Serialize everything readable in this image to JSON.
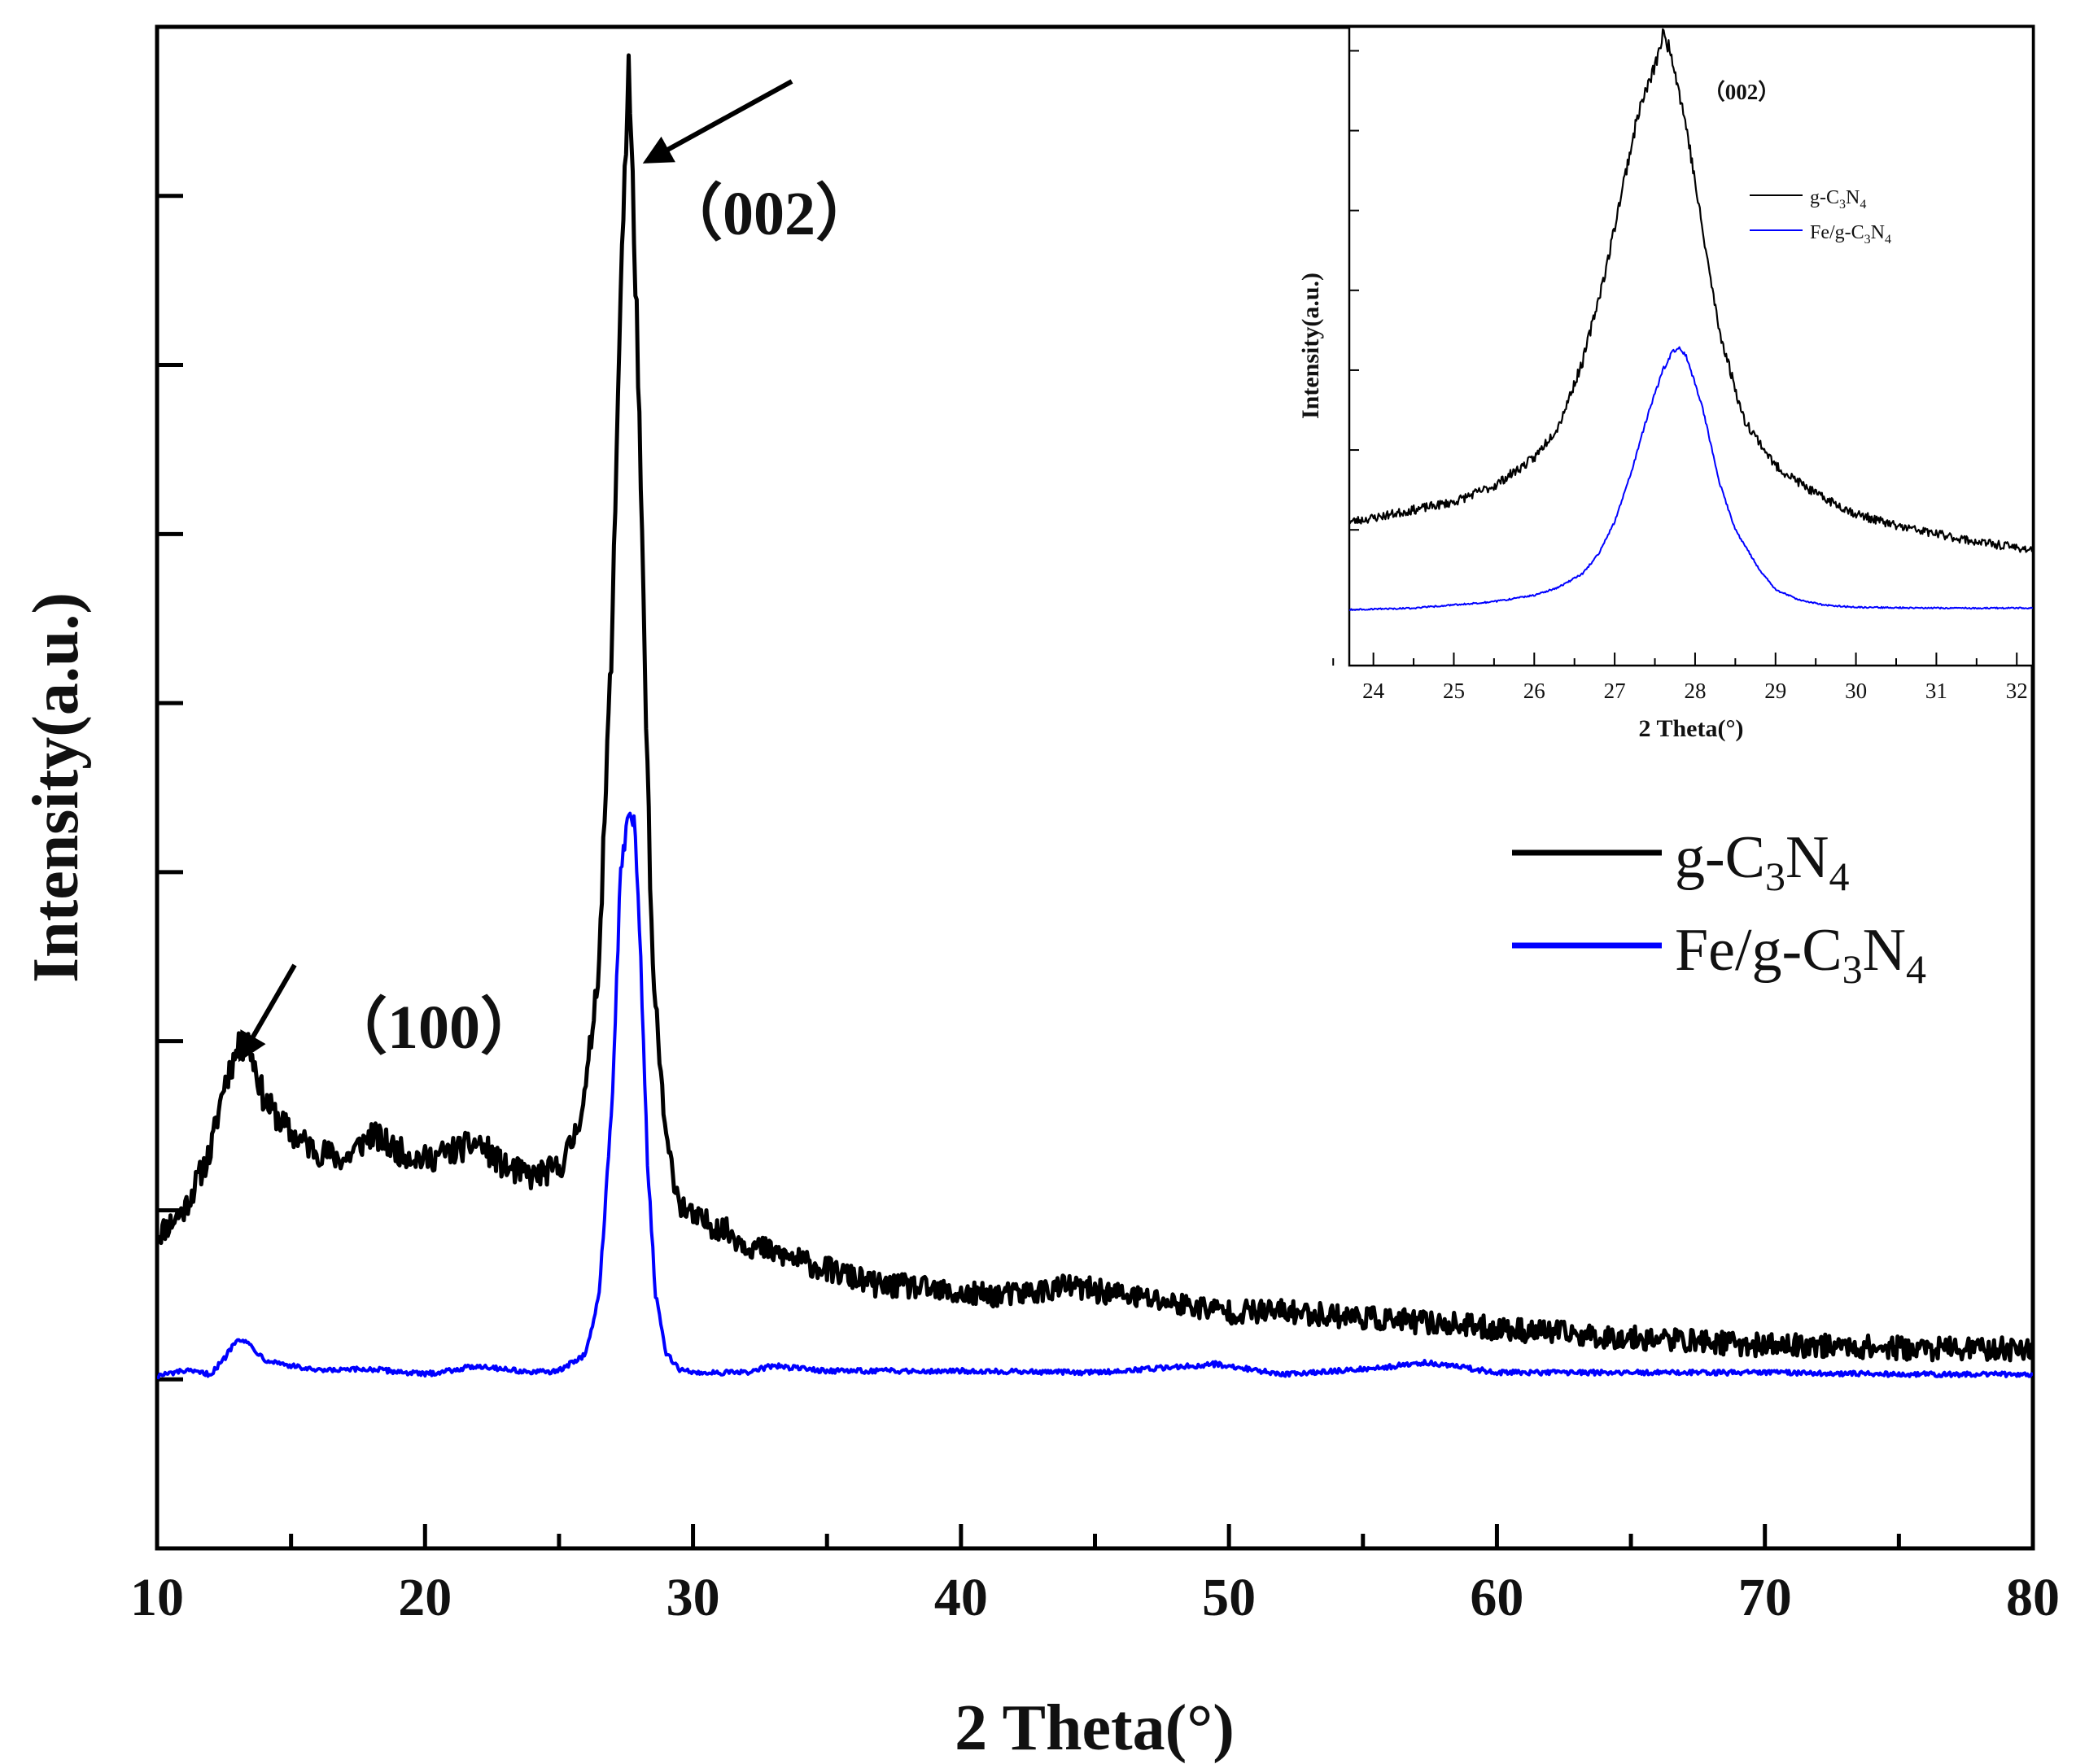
{
  "chart_data": [
    {
      "type": "line",
      "title": "",
      "xlabel": "2 Theta(°)",
      "ylabel": "Intensity(a.u.)",
      "xlim": [
        10,
        80
      ],
      "ylim": [
        -1.0,
        8.0
      ],
      "xticks": [
        "10",
        "20",
        "30",
        "40",
        "50",
        "60",
        "70",
        "80"
      ],
      "grid": false,
      "legend": {
        "position": "center-right",
        "entries": [
          {
            "prefix": "g-C",
            "sub1": "3",
            "mid": "N",
            "sub2": "4",
            "color": "#000000"
          },
          {
            "prefix": "Fe/g-C",
            "sub1": "3",
            "mid": "N",
            "sub2": "4",
            "color": "#0000ff"
          }
        ]
      },
      "annotations": [
        {
          "text": "（100）",
          "x": 16.5,
          "y": 2.3
        },
        {
          "text": "（002）",
          "x": 31.5,
          "y": 7.1
        }
      ],
      "arrows": [
        {
          "from": [
            15.0,
            2.7
          ],
          "to": [
            13.0,
            2.0
          ]
        },
        {
          "from": [
            33.8,
            8.2
          ],
          "to": [
            27.7,
            7.6
          ]
        }
      ],
      "series": [
        {
          "name": "g-C3N4",
          "color": "#000000",
          "x": [
            10,
            11,
            12,
            12.5,
            13,
            13.4,
            14,
            15,
            16,
            17,
            18,
            19,
            20,
            21,
            22,
            23,
            24,
            25,
            25.5,
            26,
            26.5,
            27,
            27.3,
            27.6,
            27.9,
            28.2,
            28.5,
            29,
            29.5,
            30,
            31,
            32,
            33,
            34,
            35,
            36,
            37,
            38,
            40,
            42,
            44,
            46,
            48,
            50,
            52,
            54,
            56,
            58,
            60,
            62,
            64,
            66,
            68,
            70,
            72,
            74,
            76,
            78,
            80
          ],
          "y": [
            0.85,
            1.0,
            1.35,
            1.75,
            1.95,
            2.0,
            1.65,
            1.45,
            1.35,
            1.3,
            1.45,
            1.35,
            1.3,
            1.35,
            1.4,
            1.25,
            1.2,
            1.25,
            1.4,
            1.7,
            2.5,
            4.5,
            6.5,
            7.75,
            6.3,
            4.2,
            2.4,
            1.4,
            1.05,
            0.95,
            0.9,
            0.8,
            0.75,
            0.7,
            0.65,
            0.6,
            0.55,
            0.55,
            0.5,
            0.5,
            0.55,
            0.5,
            0.45,
            0.4,
            0.4,
            0.38,
            0.35,
            0.33,
            0.3,
            0.28,
            0.25,
            0.24,
            0.22,
            0.2,
            0.2,
            0.19,
            0.18,
            0.18,
            0.18
          ]
        },
        {
          "name": "Fe/g-C3N4",
          "color": "#0000ff",
          "x": [
            10,
            11,
            12,
            12.5,
            13,
            13.5,
            14,
            15,
            16,
            18,
            20,
            22,
            24,
            25,
            26,
            26.5,
            27,
            27.3,
            27.6,
            27.8,
            28,
            28.3,
            28.6,
            29,
            29.5,
            30,
            32,
            33,
            35,
            40,
            45,
            49.5,
            52,
            55,
            57.5,
            60,
            65,
            70,
            75,
            80
          ],
          "y": [
            0.02,
            0.05,
            0.03,
            0.12,
            0.25,
            0.2,
            0.12,
            0.08,
            0.05,
            0.06,
            0.03,
            0.08,
            0.04,
            0.05,
            0.15,
            0.5,
            1.7,
            3.0,
            3.35,
            3.3,
            2.7,
            1.3,
            0.5,
            0.15,
            0.06,
            0.04,
            0.04,
            0.08,
            0.05,
            0.05,
            0.04,
            0.09,
            0.03,
            0.06,
            0.1,
            0.04,
            0.04,
            0.04,
            0.03,
            0.03
          ]
        }
      ]
    },
    {
      "type": "line",
      "title": "（002）",
      "xlabel": "2 Theta(°)",
      "ylabel": "Intensity(a.u.)",
      "xlim": [
        23.7,
        32.2
      ],
      "ylim": [
        -0.7,
        7.3
      ],
      "xticks": [
        "24",
        "25",
        "26",
        "27",
        "28",
        "29",
        "30",
        "31",
        "32"
      ],
      "grid": false,
      "legend": {
        "position": "top-right",
        "entries": [
          {
            "prefix": "g-C",
            "sub1": "3",
            "mid": "N",
            "sub2": "4",
            "color": "#000000"
          },
          {
            "prefix": "Fe/g-C",
            "sub1": "3",
            "mid": "N",
            "sub2": "4",
            "color": "#0000ff"
          }
        ]
      },
      "series": [
        {
          "name": "g-C3N4",
          "color": "#000000",
          "x": [
            23.7,
            24.0,
            24.5,
            25.0,
            25.5,
            26.0,
            26.3,
            26.6,
            26.9,
            27.1,
            27.3,
            27.5,
            27.6,
            27.7,
            27.9,
            28.1,
            28.3,
            28.6,
            29.0,
            29.5,
            30.0,
            30.5,
            31.0,
            31.5,
            32.2
          ],
          "y": [
            1.1,
            1.15,
            1.25,
            1.35,
            1.55,
            1.9,
            2.3,
            3.1,
            4.3,
            5.3,
            6.25,
            6.8,
            7.2,
            7.0,
            6.0,
            4.7,
            3.5,
            2.4,
            1.8,
            1.45,
            1.2,
            1.05,
            0.95,
            0.85,
            0.75
          ]
        },
        {
          "name": "Fe/g-C3N4",
          "color": "#0000ff",
          "x": [
            23.7,
            24.5,
            25.0,
            25.5,
            26.0,
            26.3,
            26.6,
            26.8,
            27.0,
            27.2,
            27.4,
            27.6,
            27.7,
            27.8,
            27.9,
            28.1,
            28.3,
            28.5,
            28.8,
            29.0,
            29.3,
            29.6,
            30.0,
            31.0,
            32.2
          ],
          "y": [
            0.0,
            0.02,
            0.06,
            0.1,
            0.18,
            0.28,
            0.45,
            0.7,
            1.1,
            1.7,
            2.4,
            3.0,
            3.2,
            3.3,
            3.15,
            2.5,
            1.6,
            1.0,
            0.5,
            0.25,
            0.12,
            0.06,
            0.03,
            0.02,
            0.02
          ]
        }
      ]
    }
  ]
}
